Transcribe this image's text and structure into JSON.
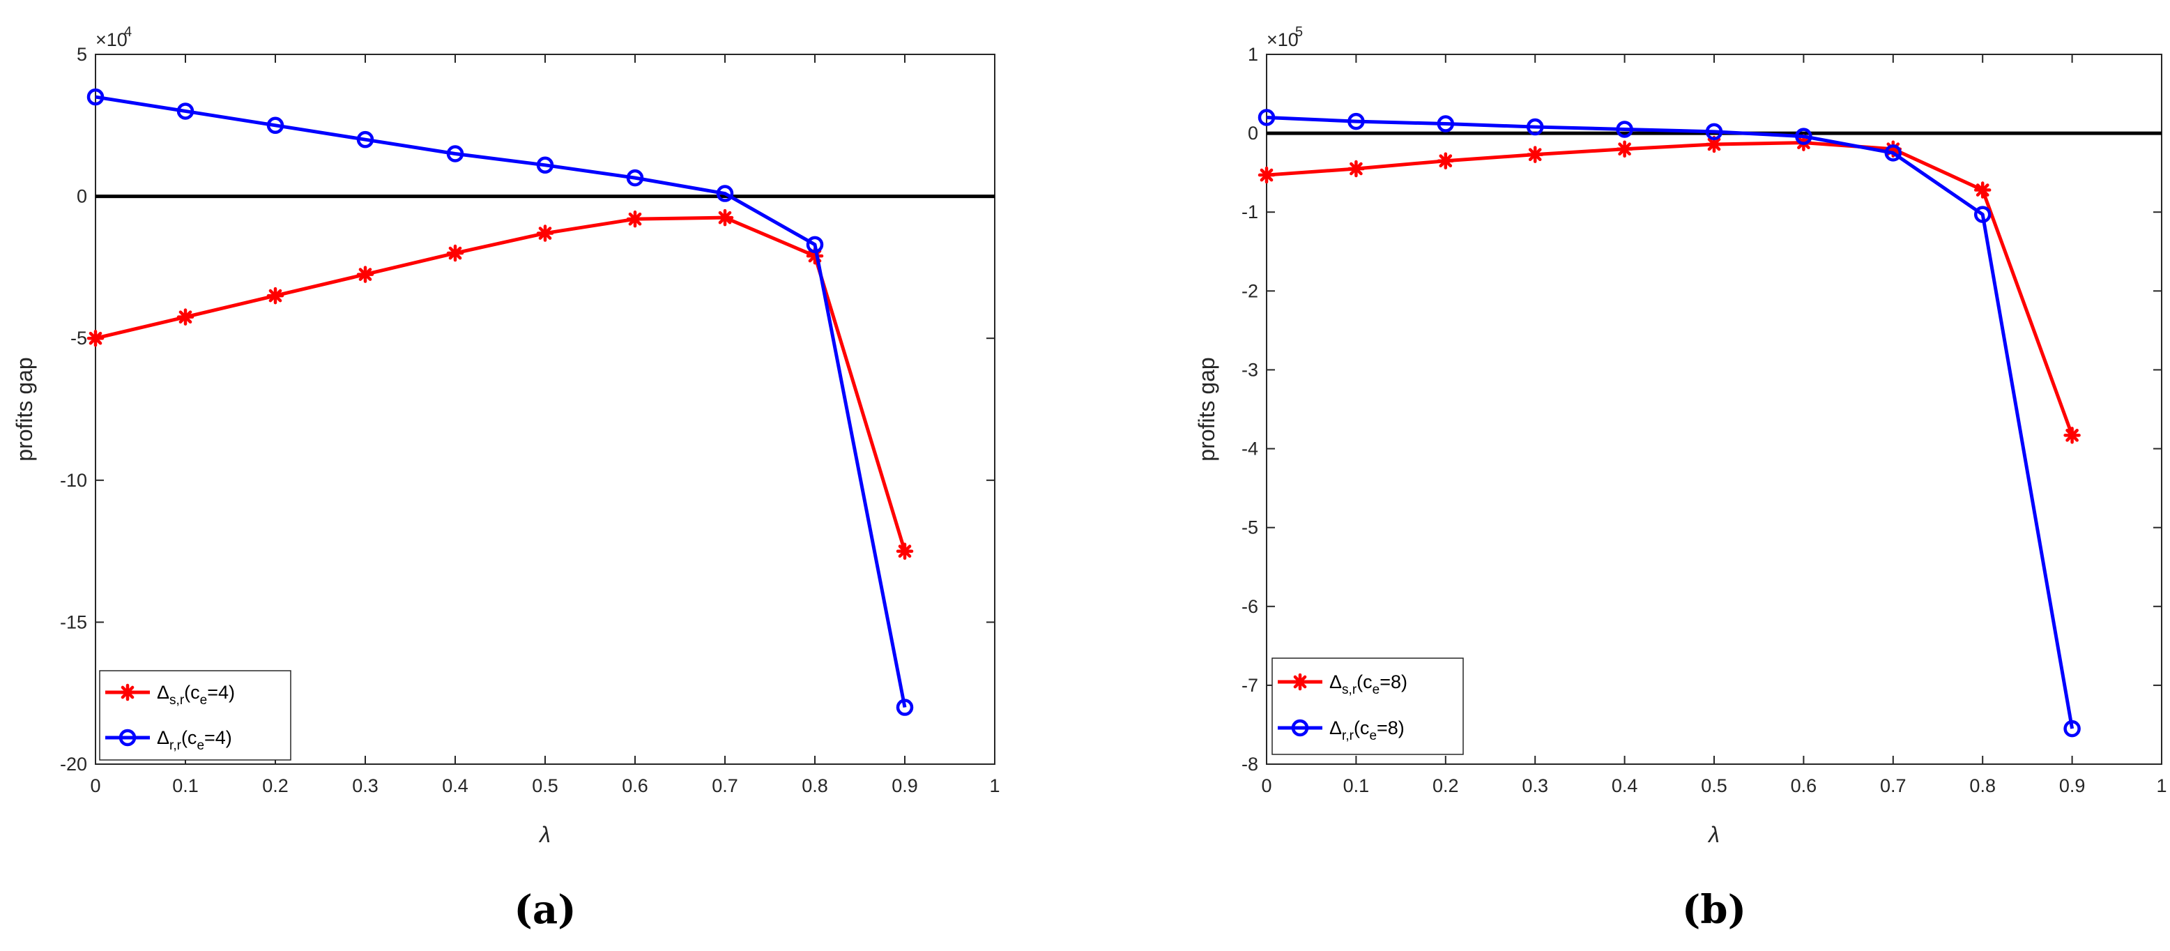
{
  "chart_data": [
    {
      "type": "line",
      "panel_label": "(a)",
      "xlabel": "λ",
      "ylabel": "profits gap",
      "exponent_base": "×10",
      "exponent_power": "4",
      "xlim": [
        0,
        1
      ],
      "ylim": [
        -20,
        5
      ],
      "xticks": [
        0,
        0.1,
        0.2,
        0.3,
        0.4,
        0.5,
        0.6,
        0.7,
        0.8,
        0.9,
        1
      ],
      "xtick_labels": [
        "0",
        "0.1",
        "0.2",
        "0.3",
        "0.4",
        "0.5",
        "0.6",
        "0.7",
        "0.8",
        "0.9",
        "1"
      ],
      "yticks": [
        -20,
        -15,
        -10,
        -5,
        0,
        5
      ],
      "ytick_labels": [
        "-20",
        "-15",
        "-10",
        "-5",
        "0",
        "5"
      ],
      "zero_line": 0,
      "legend_position": "bottom-left",
      "series": [
        {
          "name": "Δs,r(ce=4)",
          "legend_main": "Δ",
          "legend_sub": "s,r",
          "legend_mid": "(c",
          "legend_sub2": "e",
          "legend_end": "=4)",
          "color": "#ff0000",
          "marker": "star",
          "x": [
            0,
            0.1,
            0.2,
            0.3,
            0.4,
            0.5,
            0.6,
            0.7,
            0.8,
            0.9
          ],
          "y": [
            -5.0,
            -4.25,
            -3.5,
            -2.75,
            -2.0,
            -1.3,
            -0.8,
            -0.75,
            -2.1,
            -12.5
          ]
        },
        {
          "name": "Δr,r(ce=4)",
          "legend_main": "Δ",
          "legend_sub": "r,r",
          "legend_mid": "(c",
          "legend_sub2": "e",
          "legend_end": "=4)",
          "color": "#0000ff",
          "marker": "circle",
          "x": [
            0,
            0.1,
            0.2,
            0.3,
            0.4,
            0.5,
            0.6,
            0.7,
            0.8,
            0.9
          ],
          "y": [
            3.5,
            3.0,
            2.5,
            2.0,
            1.5,
            1.1,
            0.65,
            0.1,
            -1.7,
            -18.0
          ]
        }
      ]
    },
    {
      "type": "line",
      "panel_label": "(b)",
      "xlabel": "λ",
      "ylabel": "profits gap",
      "exponent_base": "×10",
      "exponent_power": "5",
      "xlim": [
        0,
        1
      ],
      "ylim": [
        -8,
        1
      ],
      "xticks": [
        0,
        0.1,
        0.2,
        0.3,
        0.4,
        0.5,
        0.6,
        0.7,
        0.8,
        0.9,
        1
      ],
      "xtick_labels": [
        "0",
        "0.1",
        "0.2",
        "0.3",
        "0.4",
        "0.5",
        "0.6",
        "0.7",
        "0.8",
        "0.9",
        "1"
      ],
      "yticks": [
        -8,
        -7,
        -6,
        -5,
        -4,
        -3,
        -2,
        -1,
        0,
        1
      ],
      "ytick_labels": [
        "-8",
        "-7",
        "-6",
        "-5",
        "-4",
        "-3",
        "-2",
        "-1",
        "0",
        "1"
      ],
      "zero_line": 0,
      "legend_position": "bottom-left",
      "series": [
        {
          "name": "Δs,r(ce=8)",
          "legend_main": "Δ",
          "legend_sub": "s,r",
          "legend_mid": "(c",
          "legend_sub2": "e",
          "legend_end": "=8)",
          "color": "#ff0000",
          "marker": "star",
          "x": [
            0,
            0.1,
            0.2,
            0.3,
            0.4,
            0.5,
            0.6,
            0.7,
            0.8,
            0.9
          ],
          "y": [
            -0.53,
            -0.45,
            -0.35,
            -0.27,
            -0.2,
            -0.14,
            -0.12,
            -0.2,
            -0.72,
            -3.83
          ]
        },
        {
          "name": "Δr,r(ce=8)",
          "legend_main": "Δ",
          "legend_sub": "r,r",
          "legend_mid": "(c",
          "legend_sub2": "e",
          "legend_end": "=8)",
          "color": "#0000ff",
          "marker": "circle",
          "x": [
            0,
            0.1,
            0.2,
            0.3,
            0.4,
            0.5,
            0.6,
            0.7,
            0.8,
            0.9
          ],
          "y": [
            0.2,
            0.15,
            0.12,
            0.08,
            0.05,
            0.02,
            -0.04,
            -0.25,
            -1.03,
            -7.55
          ]
        }
      ]
    }
  ]
}
